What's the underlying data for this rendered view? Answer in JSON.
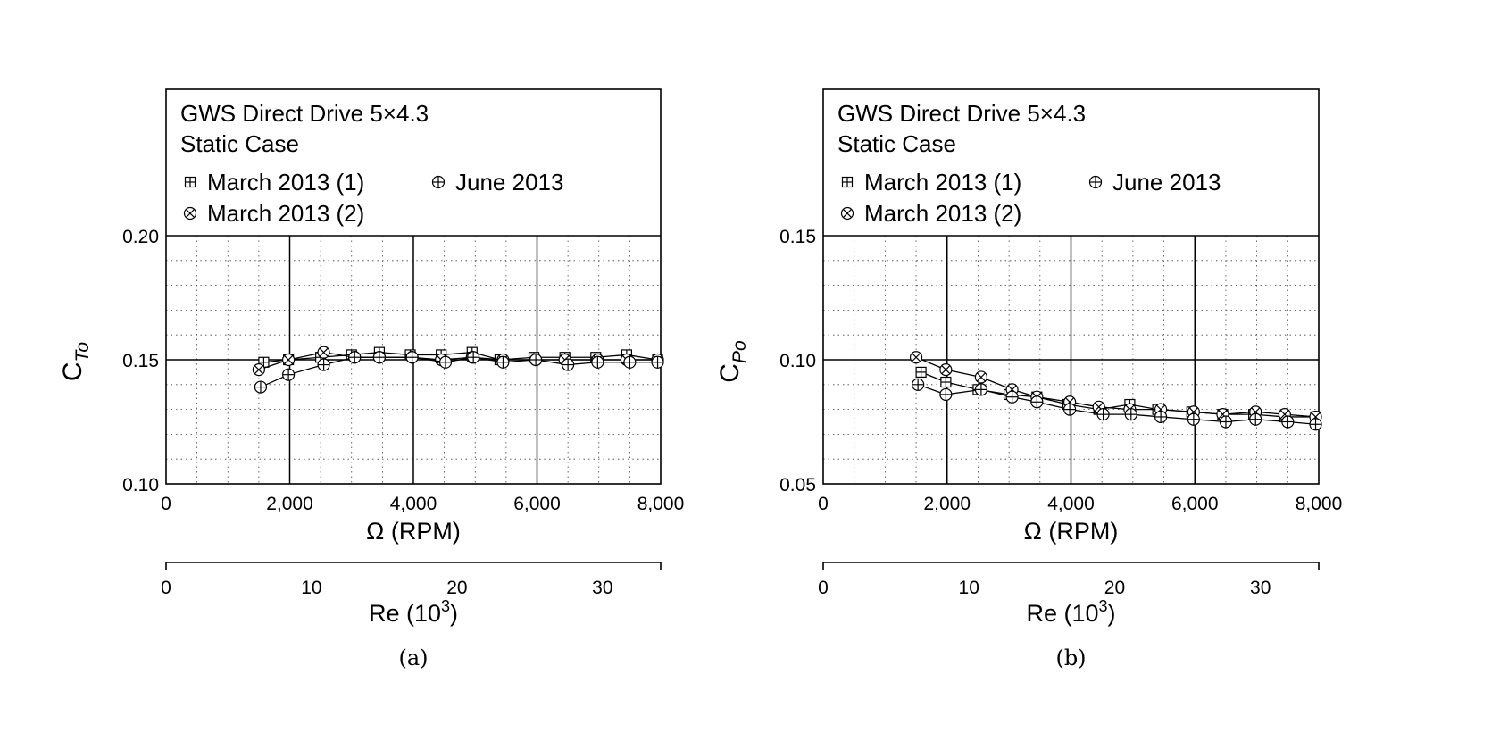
{
  "chart_data": [
    {
      "type": "line",
      "panel_label": "(a)",
      "title_lines": [
        "GWS Direct Drive 5×4.3",
        "Static Case"
      ],
      "ylabel_main": "C",
      "ylabel_sub": "To",
      "xlabel": "Ω (RPM)",
      "x2label_main": "Re (10",
      "x2label_sup": "3",
      "x2label_end": ")",
      "xlim": [
        0,
        8000
      ],
      "ylim": [
        0.1,
        0.2
      ],
      "xticks": [
        0,
        2000,
        4000,
        6000,
        8000
      ],
      "xtick_labels": [
        "0",
        "2,000",
        "4,000",
        "6,000",
        "8,000"
      ],
      "yticks": [
        0.1,
        0.15,
        0.2
      ],
      "ytick_labels": [
        "0.10",
        "0.15",
        "0.20"
      ],
      "x2lim": [
        0,
        34
      ],
      "x2ticks": [
        0,
        10,
        20,
        30
      ],
      "x2tick_labels": [
        "0",
        "10",
        "20",
        "30"
      ],
      "grid": true,
      "legend_placement": "top (inside upper box)",
      "series": [
        {
          "name": "March 2013 (1)",
          "marker": "boxplus",
          "x": [
            1580,
            1980,
            2500,
            3000,
            3450,
            3950,
            4450,
            4950,
            5400,
            5950,
            6450,
            6950,
            7450,
            7950
          ],
          "y": [
            0.149,
            0.15,
            0.151,
            0.152,
            0.153,
            0.152,
            0.152,
            0.153,
            0.15,
            0.151,
            0.151,
            0.151,
            0.152,
            0.15
          ]
        },
        {
          "name": "March 2013 (2)",
          "marker": "otimes",
          "x": [
            1500,
            1980,
            2550,
            3050,
            3450,
            3980,
            4450,
            4950,
            5450,
            5980,
            6450,
            6980,
            7450,
            7950
          ],
          "y": [
            0.146,
            0.15,
            0.153,
            0.151,
            0.151,
            0.151,
            0.15,
            0.151,
            0.15,
            0.15,
            0.15,
            0.15,
            0.15,
            0.15
          ]
        },
        {
          "name": "June 2013",
          "marker": "oplus",
          "x": [
            1530,
            1980,
            2550,
            3050,
            3450,
            3980,
            4520,
            4970,
            5450,
            5980,
            6500,
            6980,
            7500,
            7950
          ],
          "y": [
            0.139,
            0.144,
            0.148,
            0.151,
            0.151,
            0.151,
            0.149,
            0.151,
            0.149,
            0.15,
            0.148,
            0.149,
            0.149,
            0.149
          ]
        }
      ]
    },
    {
      "type": "line",
      "panel_label": "(b)",
      "title_lines": [
        "GWS Direct Drive 5×4.3",
        "Static Case"
      ],
      "ylabel_main": "C",
      "ylabel_sub": "Po",
      "xlabel": "Ω (RPM)",
      "x2label_main": "Re (10",
      "x2label_sup": "3",
      "x2label_end": ")",
      "xlim": [
        0,
        8000
      ],
      "ylim": [
        0.05,
        0.15
      ],
      "xticks": [
        0,
        2000,
        4000,
        6000,
        8000
      ],
      "xtick_labels": [
        "0",
        "2,000",
        "4,000",
        "6,000",
        "8,000"
      ],
      "yticks": [
        0.05,
        0.1,
        0.15
      ],
      "ytick_labels": [
        "0.05",
        "0.10",
        "0.15"
      ],
      "x2lim": [
        0,
        34
      ],
      "x2ticks": [
        0,
        10,
        20,
        30
      ],
      "x2tick_labels": [
        "0",
        "10",
        "20",
        "30"
      ],
      "grid": true,
      "legend_placement": "top (inside upper box)",
      "series": [
        {
          "name": "March 2013 (1)",
          "marker": "boxplus",
          "x": [
            1580,
            1980,
            2500,
            3000,
            3450,
            3950,
            4450,
            4950,
            5400,
            5950,
            6450,
            6950,
            7450,
            7950
          ],
          "y": [
            0.095,
            0.091,
            0.088,
            0.086,
            0.085,
            0.082,
            0.08,
            0.082,
            0.08,
            0.079,
            0.078,
            0.078,
            0.077,
            0.077
          ]
        },
        {
          "name": "March 2013 (2)",
          "marker": "otimes",
          "x": [
            1500,
            1980,
            2550,
            3050,
            3450,
            3980,
            4450,
            4950,
            5450,
            5980,
            6450,
            6980,
            7450,
            7950
          ],
          "y": [
            0.101,
            0.096,
            0.093,
            0.088,
            0.085,
            0.083,
            0.081,
            0.08,
            0.08,
            0.079,
            0.078,
            0.079,
            0.078,
            0.077
          ]
        },
        {
          "name": "June 2013",
          "marker": "oplus",
          "x": [
            1530,
            1980,
            2550,
            3050,
            3450,
            3980,
            4520,
            4970,
            5450,
            5980,
            6500,
            6980,
            7500,
            7950
          ],
          "y": [
            0.09,
            0.086,
            0.088,
            0.085,
            0.083,
            0.08,
            0.078,
            0.078,
            0.077,
            0.076,
            0.075,
            0.076,
            0.075,
            0.074
          ]
        }
      ]
    }
  ]
}
